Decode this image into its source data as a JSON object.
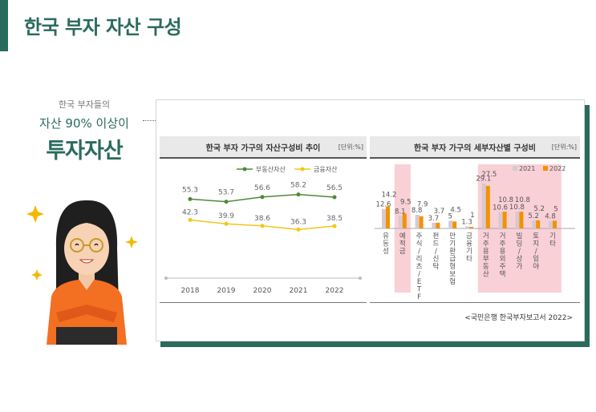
{
  "page": {
    "title": "한국 부자 자산 구성"
  },
  "intro": {
    "line1": "한국 부자들의",
    "line2": "자산 90% 이상이",
    "line3": "투자자산"
  },
  "source": "<국민은행 한국부자보고서 2022>",
  "colors": {
    "accent": "#2a6b5e",
    "realestate": "#4d8a3a",
    "financial": "#f5c518",
    "bar2021": "#d8c8d0",
    "bar2022": "#f39200",
    "highlight": "#f8d0d6"
  },
  "chart_data": [
    {
      "type": "line",
      "title": "한국 부자 가구의 자산구성비 추이",
      "unit": "[단위:%]",
      "x": [
        "2018",
        "2019",
        "2020",
        "2021",
        "2022"
      ],
      "ylim": [
        0,
        80
      ],
      "series": [
        {
          "name": "부동산자산",
          "values": [
            55.3,
            53.7,
            56.6,
            58.2,
            56.5
          ]
        },
        {
          "name": "금융자산",
          "values": [
            42.3,
            39.9,
            38.6,
            36.3,
            38.5
          ]
        }
      ],
      "legend": "top"
    },
    {
      "type": "bar",
      "title": "한국 부자 가구의 세부자산별 구성비",
      "unit": "[단위:%]",
      "categories": [
        "유동성",
        "예적금",
        "주식/리츠/ETF",
        "펀드/신탁",
        "만기환급형 보험",
        "금융기타",
        "거주용 부동산",
        "거주용 외 주택",
        "빌딩/상가",
        "토지/임야",
        "기타"
      ],
      "series": [
        {
          "name": "2021",
          "values": [
            12.6,
            8.1,
            8.8,
            3.7,
            5.0,
            1.3,
            29.1,
            10.6,
            10.8,
            5.2,
            4.8
          ]
        },
        {
          "name": "2022",
          "values": [
            14.2,
            9.5,
            7.9,
            3.7,
            4.5,
            1.0,
            27.5,
            10.8,
            10.8,
            5.2,
            5.0
          ]
        }
      ],
      "ylim": [
        0,
        30
      ],
      "legend": "top-right"
    }
  ]
}
